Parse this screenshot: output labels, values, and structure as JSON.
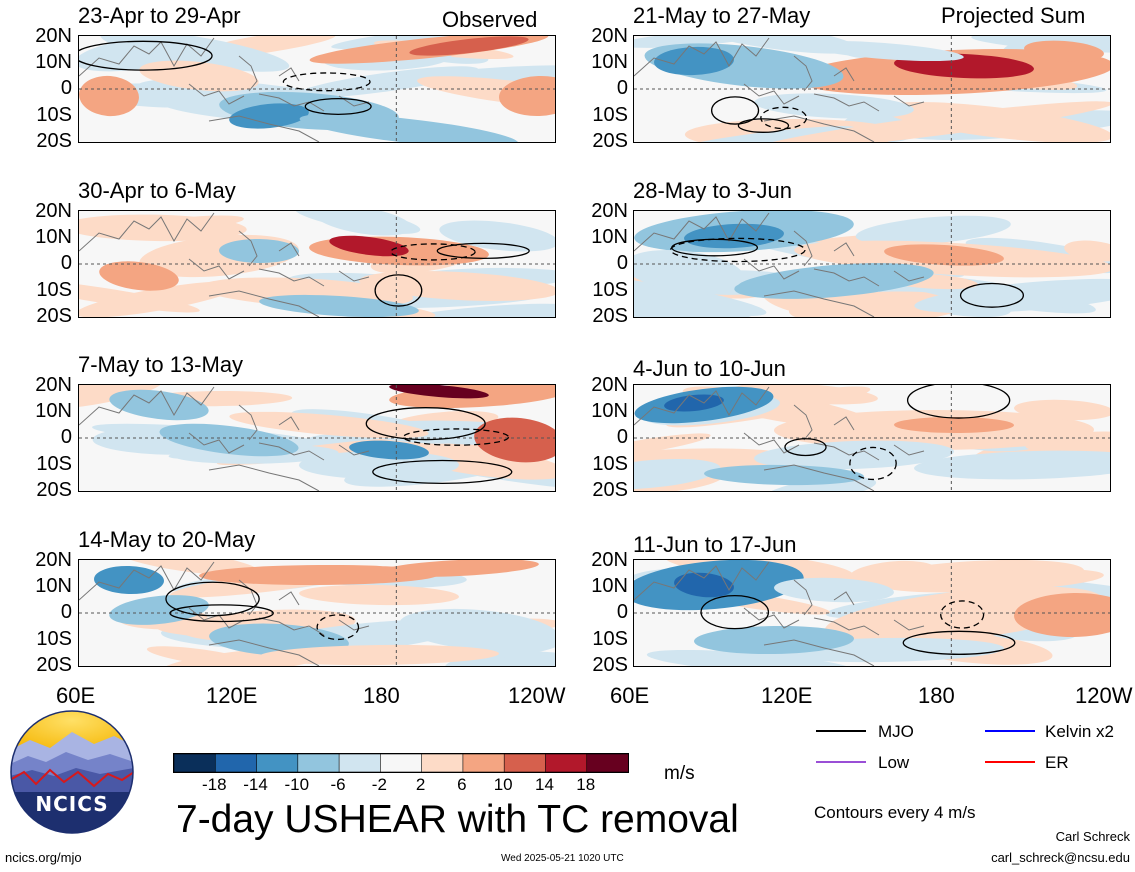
{
  "left_tag": "Observed",
  "right_tag": "Projected Sum",
  "panels": [
    {
      "title": "23-Apr to 29-Apr"
    },
    {
      "title": "30-Apr to 6-May"
    },
    {
      "title": "7-May to 13-May"
    },
    {
      "title": "14-May to 20-May"
    },
    {
      "title": "21-May to 27-May"
    },
    {
      "title": "28-May to 3-Jun"
    },
    {
      "title": "4-Jun to 10-Jun"
    },
    {
      "title": "11-Jun to 17-Jun"
    }
  ],
  "lat_ticks": [
    "20N",
    "10N",
    "0",
    "10S",
    "20S"
  ],
  "lon_ticks": [
    "60E",
    "120E",
    "180",
    "120W"
  ],
  "colorbar": {
    "colors": [
      "#0a2f5a",
      "#2166ac",
      "#4393c3",
      "#92c5de",
      "#d1e5f0",
      "#f7f7f7",
      "#fddbc7",
      "#f4a582",
      "#d6604d",
      "#b2182b",
      "#67001f"
    ],
    "labels": [
      "-18",
      "-14",
      "-10",
      "-6",
      "-2",
      "2",
      "6",
      "10",
      "14",
      "18"
    ],
    "units": "m/s"
  },
  "main_title": "7-day USHEAR with TC removal",
  "legend": {
    "mjo": "MJO",
    "kelvin": "Kelvin x2",
    "low": "Low",
    "er": "ER",
    "contours_note": "Contours every 4 m/s",
    "mjo_color": "#000000",
    "kelvin_color": "#0000ff",
    "low_color": "#9a4fd6",
    "er_color": "#ff0000"
  },
  "logo_text": "NCICS",
  "footer": {
    "url": "ncics.org/mjo",
    "timestamp": "Wed 2025-05-21 1020 UTC",
    "author": "Carl Schreck",
    "email": "carl_schreck@ncsu.edu"
  }
}
